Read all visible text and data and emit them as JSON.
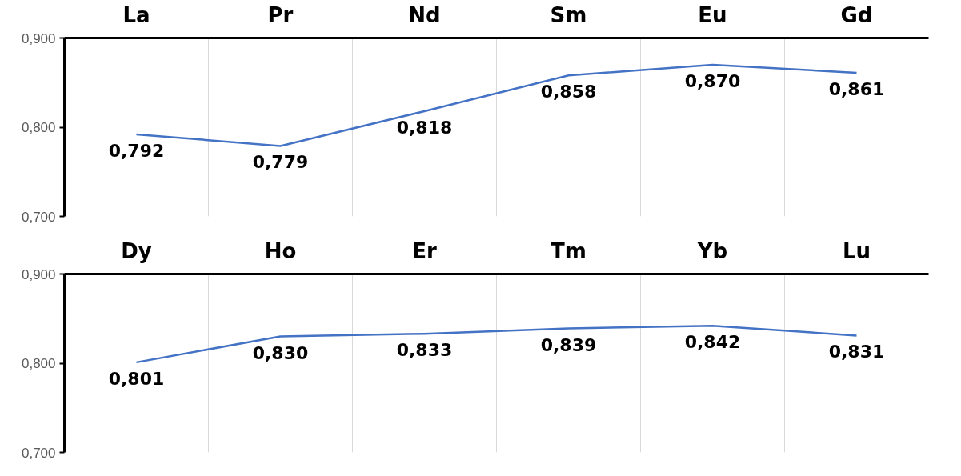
{
  "chart_data": [
    {
      "type": "line",
      "categories": [
        "La",
        "Pr",
        "Nd",
        "Sm",
        "Eu",
        "Gd"
      ],
      "series": [
        {
          "color": "#4472c4",
          "values": [
            0.792,
            0.779,
            0.818,
            0.858,
            0.87,
            0.861
          ],
          "value_labels": [
            "0,792",
            "0,779",
            "0,818",
            "0,858",
            "0,870",
            "0,861"
          ]
        }
      ],
      "ylim": [
        0.7,
        0.9
      ],
      "yticks": [
        {
          "value": 0.7,
          "label": "0,700"
        },
        {
          "value": 0.8,
          "label": "0,800"
        },
        {
          "value": 0.9,
          "label": "0,900"
        }
      ],
      "grid": "x",
      "line_style": "solid"
    },
    {
      "type": "line",
      "categories": [
        "Dy",
        "Ho",
        "Er",
        "Tm",
        "Yb",
        "Lu"
      ],
      "series": [
        {
          "color": "#4472c4",
          "values": [
            0.801,
            0.83,
            0.833,
            0.839,
            0.842,
            0.831
          ],
          "value_labels": [
            "0,801",
            "0,830",
            "0,833",
            "0,839",
            "0,842",
            "0,831"
          ]
        }
      ],
      "ylim": [
        0.7,
        0.9
      ],
      "yticks": [
        {
          "value": 0.7,
          "label": "0,700"
        },
        {
          "value": 0.8,
          "label": "0,800"
        },
        {
          "value": 0.9,
          "label": "0,900"
        }
      ],
      "grid": "x",
      "line_style": "solid"
    }
  ]
}
